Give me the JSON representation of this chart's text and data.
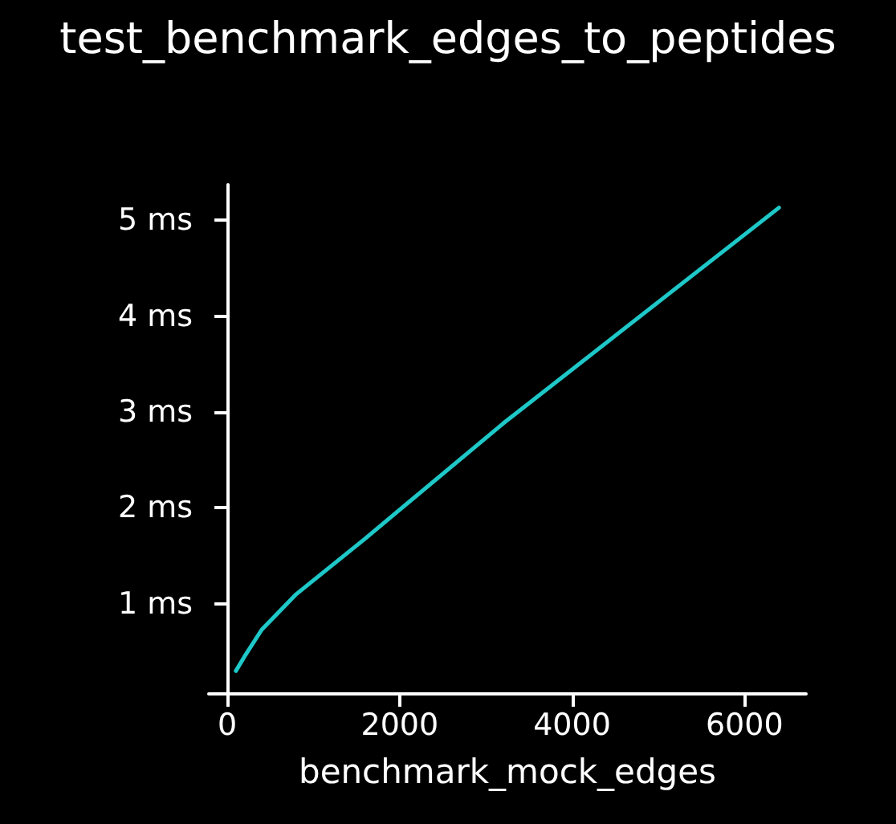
{
  "chart_data": {
    "type": "line",
    "title": "test_benchmark_edges_to_peptides",
    "xlabel": "benchmark_mock_edges",
    "x": [
      100,
      200,
      400,
      800,
      1600,
      3200,
      6400
    ],
    "series": [
      {
        "color": "#1fc8c8",
        "values": [
          0.3,
          0.45,
          0.73,
          1.1,
          1.68,
          2.88,
          5.13
        ]
      }
    ],
    "xlim": [
      -215,
      6715
    ],
    "ylim": [
      0.06,
      5.37
    ],
    "xticks": [
      0,
      2000,
      4000,
      6000
    ],
    "yticks": [
      {
        "value": 1,
        "label": "1 ms"
      },
      {
        "value": 2,
        "label": "2 ms"
      },
      {
        "value": 3,
        "label": "3 ms"
      },
      {
        "value": 4,
        "label": "4 ms"
      },
      {
        "value": 5,
        "label": "5 ms"
      }
    ],
    "marker": "none",
    "line_style": "solid"
  }
}
